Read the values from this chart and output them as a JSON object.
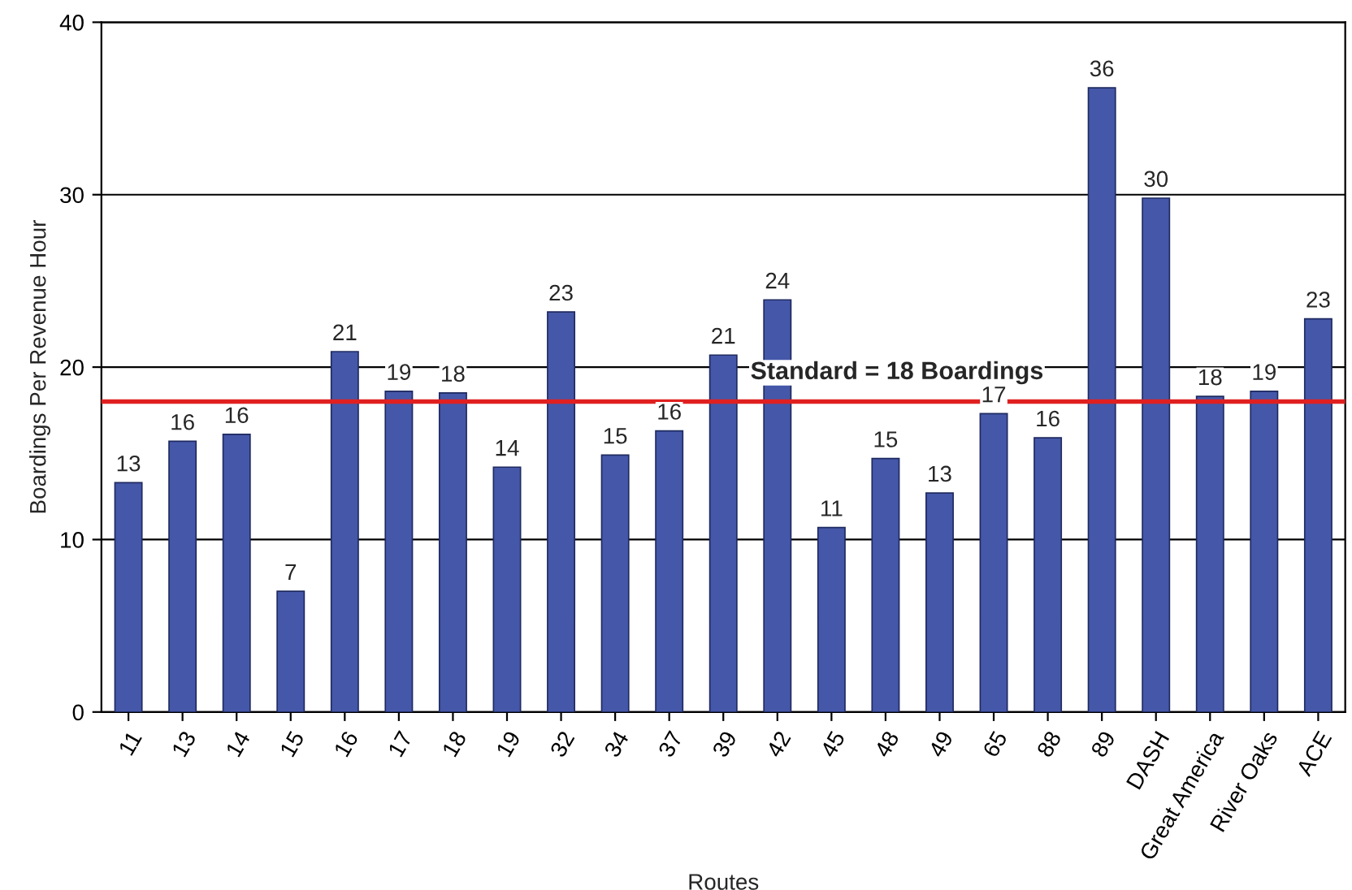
{
  "chart_data": {
    "type": "bar",
    "xlabel": "Routes",
    "ylabel": "Boardings Per Revenue Hour",
    "categories": [
      "11",
      "13",
      "14",
      "15",
      "16",
      "17",
      "18",
      "19",
      "32",
      "34",
      "37",
      "39",
      "42",
      "45",
      "48",
      "49",
      "65",
      "88",
      "89",
      "DASH",
      "Great America",
      "River Oaks",
      "ACE"
    ],
    "values": [
      13.3,
      15.7,
      16.1,
      7.0,
      20.9,
      18.6,
      18.5,
      14.2,
      23.2,
      14.9,
      16.3,
      20.7,
      23.9,
      10.7,
      14.7,
      12.7,
      17.3,
      15.9,
      36.2,
      29.8,
      18.3,
      18.6,
      22.8
    ],
    "value_labels": [
      "13",
      "16",
      "16",
      "7",
      "21",
      "19",
      "18",
      "14",
      "23",
      "15",
      "16",
      "21",
      "24",
      "11",
      "15",
      "13",
      "17",
      "16",
      "36",
      "30",
      "18",
      "19",
      "23"
    ],
    "color": "#4557a8",
    "ylim": [
      0,
      40
    ],
    "yticks": [
      0,
      10,
      20,
      30,
      40
    ],
    "grid": "y",
    "ref_lines": [
      {
        "axis": "y",
        "value": 18,
        "label": "Standard = 18 Boardings",
        "color": "#e02020"
      }
    ]
  }
}
